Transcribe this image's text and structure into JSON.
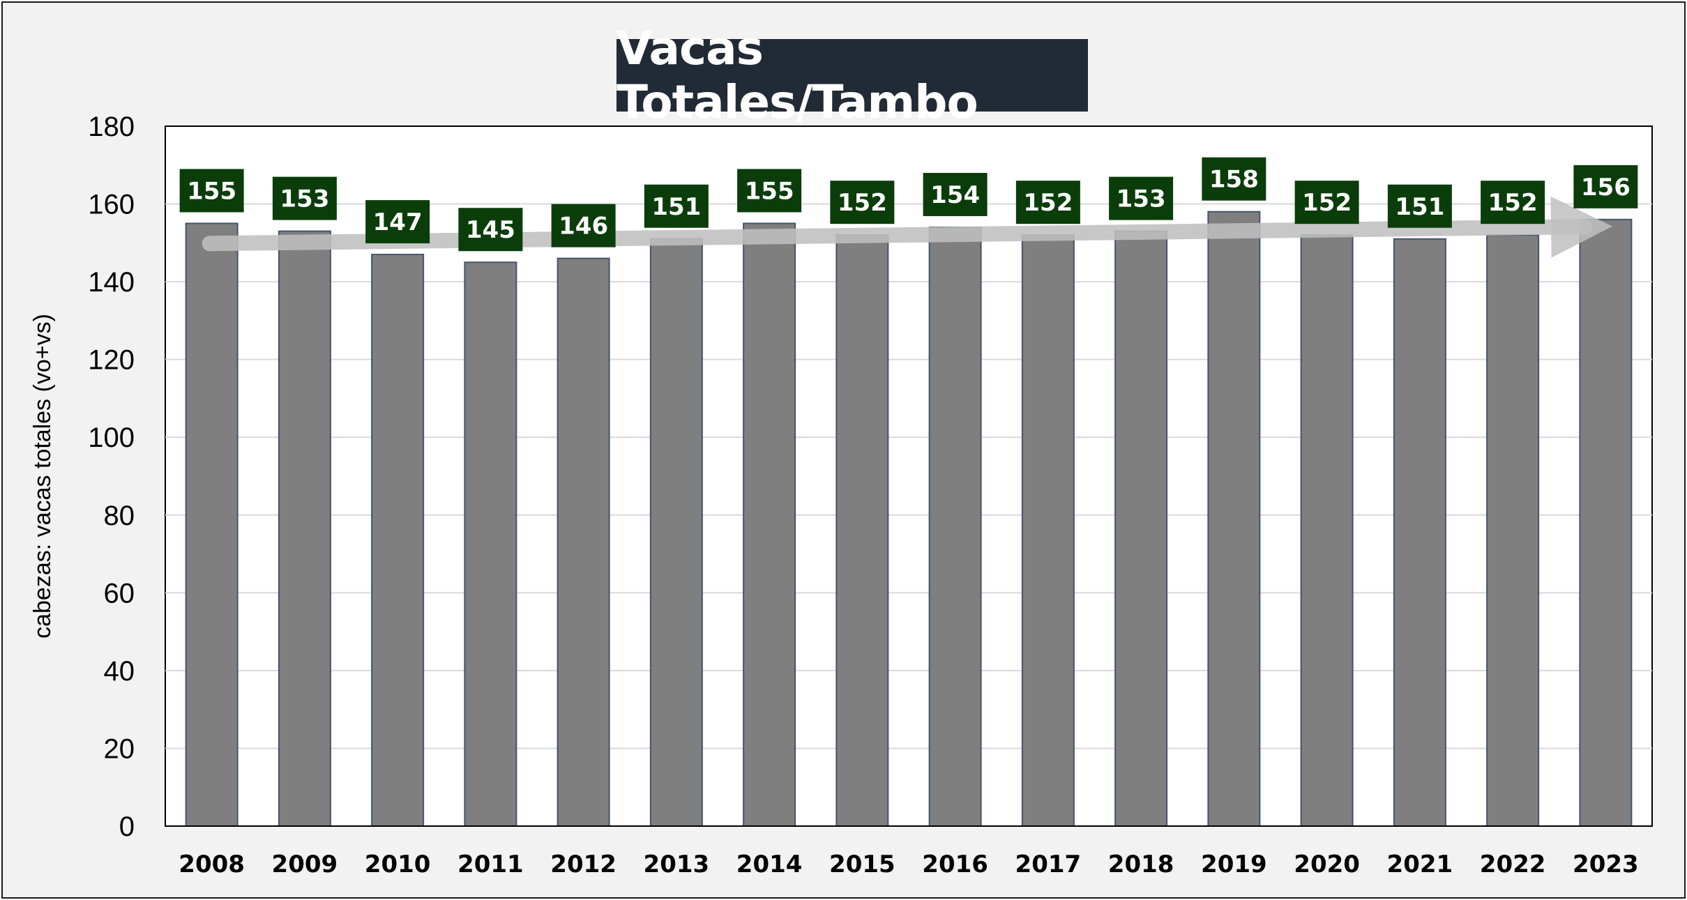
{
  "chart_data": {
    "type": "bar",
    "title": "Vacas Totales/Tambo",
    "ylabel": "cabezas: vacas totales (vo+vs)",
    "xlabel": "",
    "categories": [
      "2008",
      "2009",
      "2010",
      "2011",
      "2012",
      "2013",
      "2014",
      "2015",
      "2016",
      "2017",
      "2018",
      "2019",
      "2020",
      "2021",
      "2022",
      "2023"
    ],
    "values": [
      155,
      153,
      147,
      145,
      146,
      151,
      155,
      152,
      154,
      152,
      153,
      158,
      152,
      151,
      152,
      156
    ],
    "ylim": [
      0,
      180
    ],
    "yticks": [
      0,
      20,
      40,
      60,
      80,
      100,
      120,
      140,
      160,
      180
    ],
    "grid": true,
    "trend_arrow": true,
    "bar_color": "#7f7f7f",
    "bar_edge_color": "#44546a",
    "label_box_color": "#0b3d0b",
    "title_box_color": "#222a35"
  }
}
